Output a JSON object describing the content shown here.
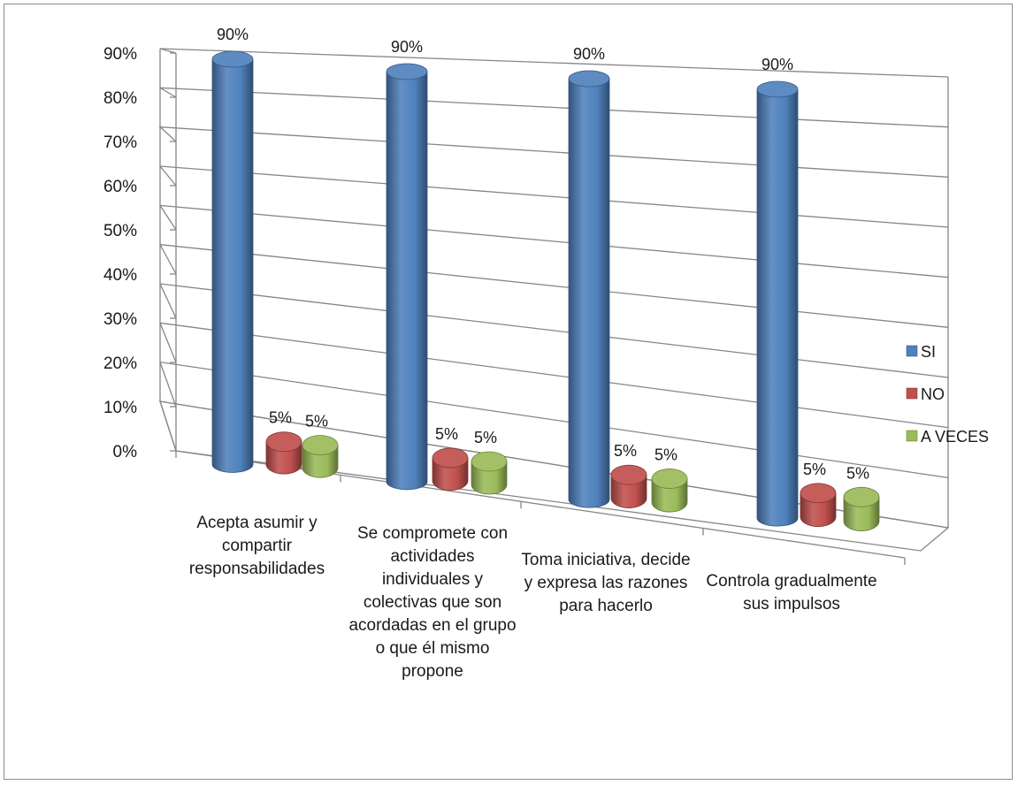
{
  "chart_data": {
    "type": "bar",
    "categories": [
      "Acepta asumir y compartir responsabilidades",
      "Se compromete con actividades individuales y colectivas que son acordadas en el grupo o que él mismo propone",
      "Toma iniciativa, decide y expresa las razones para hacerlo",
      "Controla gradualmente sus impulsos"
    ],
    "series": [
      {
        "name": "SI",
        "values": [
          90,
          90,
          90,
          90
        ],
        "labels": [
          "90%",
          "90%",
          "90%",
          "90%"
        ],
        "color": "#4f81bd"
      },
      {
        "name": "NO",
        "values": [
          5,
          5,
          5,
          5
        ],
        "labels": [
          "5%",
          "5%",
          "5%",
          "5%"
        ],
        "color": "#c0504d"
      },
      {
        "name": "A VECES",
        "values": [
          5,
          5,
          5,
          5
        ],
        "labels": [
          "5%",
          "5%",
          "5%",
          "5%"
        ],
        "color": "#9bbb59"
      }
    ],
    "yticks": [
      "0%",
      "10%",
      "20%",
      "30%",
      "40%",
      "50%",
      "60%",
      "70%",
      "80%",
      "90%"
    ],
    "ylim": [
      0,
      90
    ],
    "grid": true,
    "legend_position": "right",
    "style": "3d-cylinder"
  }
}
